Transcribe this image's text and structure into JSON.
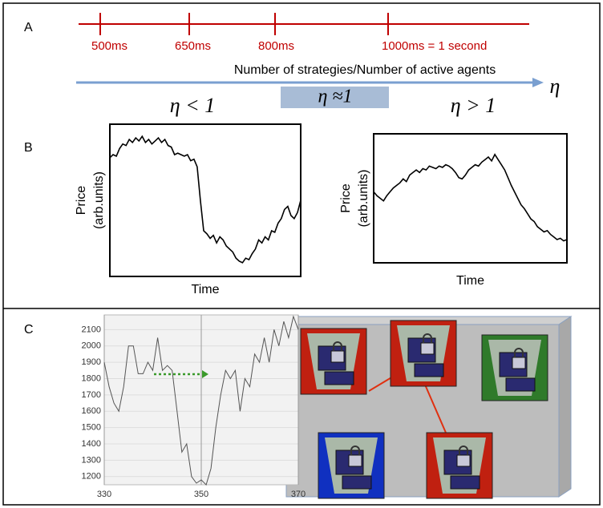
{
  "panel_labels": [
    "A",
    "B",
    "C"
  ],
  "timeline": {
    "ticks": [
      "500ms",
      "650ms",
      "800ms",
      "1000ms = 1 second"
    ],
    "axis_label": "Number of strategies/Number of active agents",
    "axis_symbol": "η",
    "regimes": [
      "η < 1",
      "η ≈1",
      "η > 1"
    ]
  },
  "chart_data": [
    {
      "type": "line",
      "xlabel": "Time",
      "ylabel": [
        "Price",
        "(arb.units)"
      ],
      "color": "#000000",
      "ylim": [
        0,
        100
      ],
      "values": [
        78,
        80,
        79,
        84,
        87,
        86,
        90,
        88,
        91,
        89,
        92,
        88,
        90,
        87,
        89,
        91,
        88,
        90,
        86,
        85,
        80,
        81,
        80,
        79,
        80,
        76,
        77,
        72,
        50,
        30,
        28,
        25,
        27,
        22,
        26,
        24,
        20,
        18,
        16,
        12,
        10,
        9,
        12,
        11,
        15,
        18,
        24,
        22,
        26,
        24,
        30,
        29,
        35,
        38,
        44,
        46,
        40,
        38,
        42,
        50
      ]
    },
    {
      "type": "line",
      "xlabel": "Time",
      "ylabel": [
        "Price",
        "(arb.units)"
      ],
      "color": "#000000",
      "ylim": [
        0,
        100
      ],
      "values": [
        55,
        52,
        50,
        48,
        52,
        55,
        58,
        60,
        62,
        65,
        63,
        68,
        70,
        72,
        70,
        73,
        72,
        75,
        74,
        73,
        75,
        74,
        76,
        75,
        73,
        70,
        66,
        65,
        68,
        72,
        74,
        76,
        75,
        78,
        80,
        82,
        79,
        84,
        80,
        76,
        72,
        66,
        60,
        55,
        50,
        45,
        42,
        38,
        34,
        32,
        28,
        26,
        24,
        25,
        22,
        20,
        18,
        19,
        17,
        18
      ]
    },
    {
      "type": "line",
      "color": "#555555",
      "grid": true,
      "x": [
        330,
        331,
        332,
        333,
        334,
        335,
        336,
        337,
        338,
        339,
        340,
        341,
        342,
        343,
        344,
        345,
        346,
        347,
        348,
        349,
        350,
        351,
        352,
        353,
        354,
        355,
        356,
        357,
        358,
        359,
        360,
        361,
        362,
        363,
        364,
        365,
        366,
        367,
        368,
        369,
        370
      ],
      "values": [
        1900,
        1750,
        1650,
        1600,
        1750,
        2000,
        2000,
        1830,
        1830,
        1900,
        1850,
        2050,
        1850,
        1880,
        1850,
        1600,
        1350,
        1400,
        1200,
        1160,
        1180,
        1150,
        1250,
        1500,
        1700,
        1850,
        1800,
        1850,
        1600,
        1800,
        1750,
        1950,
        1900,
        2050,
        1900,
        2100,
        2000,
        2150,
        2050,
        2180,
        2100
      ],
      "xlim": [
        330,
        370
      ],
      "ylim": [
        1150,
        2190
      ],
      "xticks": [
        330,
        350,
        370
      ],
      "yticks": [
        1200,
        1300,
        1400,
        1500,
        1600,
        1700,
        1800,
        1900,
        2000,
        2100
      ]
    }
  ]
}
